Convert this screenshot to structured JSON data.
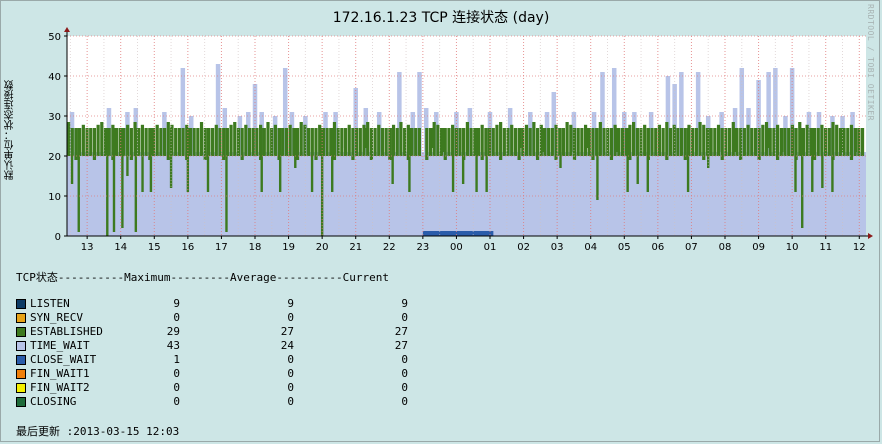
{
  "title": "172.16.1.23 TCP 连接状态 (day)",
  "ylabel": "默认单位：状态连接数",
  "vendor_text": "RRDTOOL / TOBI OETIKER",
  "legend": {
    "header": "TCP状态----------Maximum---------Average----------Current",
    "rows": [
      {
        "name": "LISTEN",
        "color": "#0d3b66",
        "max": "9",
        "avg": "9",
        "cur": "9"
      },
      {
        "name": "SYN_RECV",
        "color": "#e8a317",
        "max": "0",
        "avg": "0",
        "cur": "0"
      },
      {
        "name": "ESTABLISHED",
        "color": "#3d7a1f",
        "max": "29",
        "avg": "27",
        "cur": "27"
      },
      {
        "name": "TIME_WAIT",
        "color": "#b8c4e8",
        "max": "43",
        "avg": "24",
        "cur": "27"
      },
      {
        "name": "CLOSE_WAIT",
        "color": "#2a5caa",
        "max": "1",
        "avg": "0",
        "cur": "0"
      },
      {
        "name": "FIN_WAIT1",
        "color": "#f07f0a",
        "max": "0",
        "avg": "0",
        "cur": "0"
      },
      {
        "name": "FIN_WAIT2",
        "color": "#f5f000",
        "max": "0",
        "avg": "0",
        "cur": "0"
      },
      {
        "name": "CLOSING",
        "color": "#1e6b3a",
        "max": "0",
        "avg": "0",
        "cur": "0"
      }
    ]
  },
  "last_update": "最后更新 :2013-03-15 12:03",
  "chart_data": {
    "type": "area",
    "ylim": [
      0,
      50
    ],
    "yticks": [
      0,
      10,
      20,
      30,
      40,
      50
    ],
    "x_range_hours": [
      12.4,
      36.2
    ],
    "x_ticks": [
      {
        "label": "13",
        "hour": 13
      },
      {
        "label": "14",
        "hour": 14
      },
      {
        "label": "15",
        "hour": 15
      },
      {
        "label": "16",
        "hour": 16
      },
      {
        "label": "17",
        "hour": 17
      },
      {
        "label": "18",
        "hour": 18
      },
      {
        "label": "19",
        "hour": 19
      },
      {
        "label": "20",
        "hour": 20
      },
      {
        "label": "21",
        "hour": 21
      },
      {
        "label": "22",
        "hour": 22
      },
      {
        "label": "23",
        "hour": 23
      },
      {
        "label": "00",
        "hour": 24
      },
      {
        "label": "01",
        "hour": 25
      },
      {
        "label": "02",
        "hour": 26
      },
      {
        "label": "03",
        "hour": 27
      },
      {
        "label": "04",
        "hour": 28
      },
      {
        "label": "05",
        "hour": 29
      },
      {
        "label": "06",
        "hour": 30
      },
      {
        "label": "07",
        "hour": 31
      },
      {
        "label": "08",
        "hour": 32
      },
      {
        "label": "09",
        "hour": 33
      },
      {
        "label": "10",
        "hour": 34
      },
      {
        "label": "11",
        "hour": 35
      },
      {
        "label": "12",
        "hour": 36
      }
    ],
    "grid": true,
    "series": [
      {
        "name": "TIME_WAIT",
        "color": "#b8c4e8",
        "baseline": 21,
        "peaks": [
          [
            12.55,
            31
          ],
          [
            13.65,
            32
          ],
          [
            14.2,
            31
          ],
          [
            14.45,
            32
          ],
          [
            15.3,
            31
          ],
          [
            15.85,
            42
          ],
          [
            16.1,
            30
          ],
          [
            16.9,
            43
          ],
          [
            17.1,
            32
          ],
          [
            17.55,
            30
          ],
          [
            17.8,
            31
          ],
          [
            18.0,
            38
          ],
          [
            18.2,
            31
          ],
          [
            18.6,
            30
          ],
          [
            18.9,
            42
          ],
          [
            19.1,
            31
          ],
          [
            19.5,
            30
          ],
          [
            20.1,
            31
          ],
          [
            20.4,
            31
          ],
          [
            21.0,
            37
          ],
          [
            21.3,
            32
          ],
          [
            21.7,
            31
          ],
          [
            22.3,
            41
          ],
          [
            22.7,
            31
          ],
          [
            22.9,
            41
          ],
          [
            23.1,
            32
          ],
          [
            23.4,
            31
          ],
          [
            24.0,
            31
          ],
          [
            24.4,
            32
          ],
          [
            25.0,
            31
          ],
          [
            25.6,
            32
          ],
          [
            26.2,
            31
          ],
          [
            26.7,
            31
          ],
          [
            26.9,
            36
          ],
          [
            27.5,
            31
          ],
          [
            28.1,
            31
          ],
          [
            28.35,
            41
          ],
          [
            28.7,
            42
          ],
          [
            29.0,
            31
          ],
          [
            29.3,
            31
          ],
          [
            29.8,
            31
          ],
          [
            30.3,
            40
          ],
          [
            30.5,
            38
          ],
          [
            30.7,
            41
          ],
          [
            31.2,
            41
          ],
          [
            31.5,
            30
          ],
          [
            31.9,
            31
          ],
          [
            32.3,
            32
          ],
          [
            32.5,
            42
          ],
          [
            32.7,
            32
          ],
          [
            33.0,
            39
          ],
          [
            33.3,
            41
          ],
          [
            33.5,
            42
          ],
          [
            33.8,
            30
          ],
          [
            34.0,
            42
          ],
          [
            34.5,
            31
          ],
          [
            34.8,
            31
          ],
          [
            35.2,
            30
          ],
          [
            35.5,
            30
          ],
          [
            35.8,
            31
          ]
        ]
      },
      {
        "name": "ESTABLISHED",
        "color": "#3d7a1f",
        "band": [
          20,
          27
        ],
        "spikes": [
          [
            12.55,
            13
          ],
          [
            12.75,
            1
          ],
          [
            13.6,
            0
          ],
          [
            13.8,
            1
          ],
          [
            14.05,
            2
          ],
          [
            14.2,
            15
          ],
          [
            14.45,
            1
          ],
          [
            14.65,
            11
          ],
          [
            14.9,
            11
          ],
          [
            15.5,
            12
          ],
          [
            16.0,
            11
          ],
          [
            16.6,
            11
          ],
          [
            17.15,
            1
          ],
          [
            18.2,
            11
          ],
          [
            18.75,
            11
          ],
          [
            19.2,
            17
          ],
          [
            19.7,
            11
          ],
          [
            20.0,
            0
          ],
          [
            20.3,
            11
          ],
          [
            20.6,
            22
          ],
          [
            21.3,
            22
          ],
          [
            22.1,
            13
          ],
          [
            22.6,
            11
          ],
          [
            23.3,
            22
          ],
          [
            23.6,
            21
          ],
          [
            23.9,
            11
          ],
          [
            24.2,
            13
          ],
          [
            24.6,
            11
          ],
          [
            24.9,
            11
          ],
          [
            25.9,
            22
          ],
          [
            26.6,
            21
          ],
          [
            27.1,
            17
          ],
          [
            27.5,
            21
          ],
          [
            27.9,
            22
          ],
          [
            28.2,
            9
          ],
          [
            28.8,
            21
          ],
          [
            29.1,
            11
          ],
          [
            29.4,
            13
          ],
          [
            29.7,
            11
          ],
          [
            30.5,
            21
          ],
          [
            30.9,
            11
          ],
          [
            31.5,
            17
          ],
          [
            31.9,
            21
          ],
          [
            32.3,
            21
          ],
          [
            32.9,
            21
          ],
          [
            33.3,
            22
          ],
          [
            33.7,
            21
          ],
          [
            34.1,
            11
          ],
          [
            34.3,
            2
          ],
          [
            34.6,
            11
          ],
          [
            34.9,
            12
          ],
          [
            35.2,
            11
          ],
          [
            35.5,
            21
          ],
          [
            35.9,
            21
          ]
        ]
      },
      {
        "name": "CLOSE_WAIT",
        "color": "#2a5caa",
        "segment": [
          23.0,
          25.1
        ],
        "value": 1
      }
    ]
  }
}
